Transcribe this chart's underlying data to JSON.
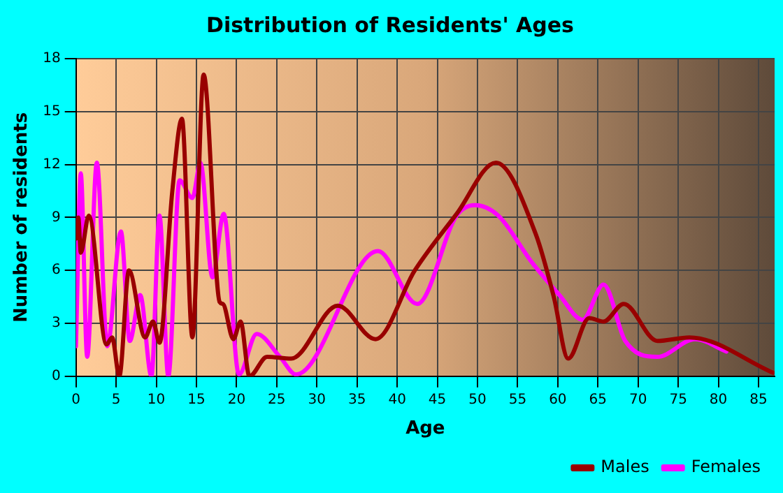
{
  "chart_data": {
    "type": "line",
    "title": "Distribution of Residents' Ages",
    "xlabel": "Age",
    "ylabel": "Number of residents",
    "xlim": [
      0,
      87
    ],
    "xticks": [
      0,
      5,
      10,
      15,
      20,
      25,
      30,
      35,
      40,
      45,
      50,
      55,
      60,
      65,
      70,
      75,
      80,
      85
    ],
    "ylim": [
      0,
      18
    ],
    "yticks": [
      0,
      3,
      6,
      9,
      12,
      15,
      18
    ],
    "grid": true,
    "legend": "bottom right",
    "marker": "none",
    "line_style": "solid",
    "series": [
      {
        "name": "Males",
        "color": "#990000",
        "x": [
          0,
          0.3,
          0.6,
          1.6,
          3.8,
          4.5,
          5.4,
          6.6,
          8.6,
          9.6,
          10.4,
          12,
          13.2,
          14.5,
          15.9,
          17.9,
          18.3,
          19.6,
          20.5,
          21.6,
          23.8,
          26.8,
          32.6,
          37.3,
          42.2,
          47.4,
          52.3,
          57.3,
          59.5,
          61.3,
          63.9,
          65.7,
          68.2,
          72.4,
          76.4,
          86.8
        ],
        "values": [
          7.8,
          9,
          7,
          9.1,
          1.8,
          2.2,
          0,
          6,
          2.2,
          3.1,
          1.9,
          10.5,
          14.6,
          2.2,
          17.1,
          4.2,
          4.1,
          2.1,
          3.1,
          0,
          1.1,
          1,
          4,
          2.1,
          6,
          9.2,
          12.1,
          8,
          4.5,
          1,
          3.3,
          3.1,
          4.1,
          2,
          2.2,
          0.2
        ]
      },
      {
        "name": "Females",
        "color": "#ff00ff",
        "x": [
          0,
          0.6,
          1.4,
          2.6,
          3.9,
          5.6,
          6.7,
          8,
          9.4,
          10.4,
          11.5,
          12.9,
          14.5,
          15.5,
          17,
          18.4,
          20.3,
          22.5,
          25.4,
          27.4,
          37.6,
          42.5,
          47.4,
          49.7,
          52.6,
          56.7,
          60.2,
          63.1,
          65.7,
          68.4,
          72.4,
          77.1,
          81
        ],
        "values": [
          1.7,
          11.5,
          1.1,
          12.1,
          1.7,
          8.2,
          2,
          4.6,
          0,
          9.1,
          0,
          11.1,
          10.1,
          12.1,
          5.6,
          9.2,
          0.1,
          2.4,
          1.1,
          0.1,
          7.1,
          4.1,
          9.1,
          9.7,
          9.1,
          6.5,
          4.6,
          3.2,
          5.2,
          2,
          1.1,
          2.1,
          1.4
        ]
      }
    ]
  }
}
